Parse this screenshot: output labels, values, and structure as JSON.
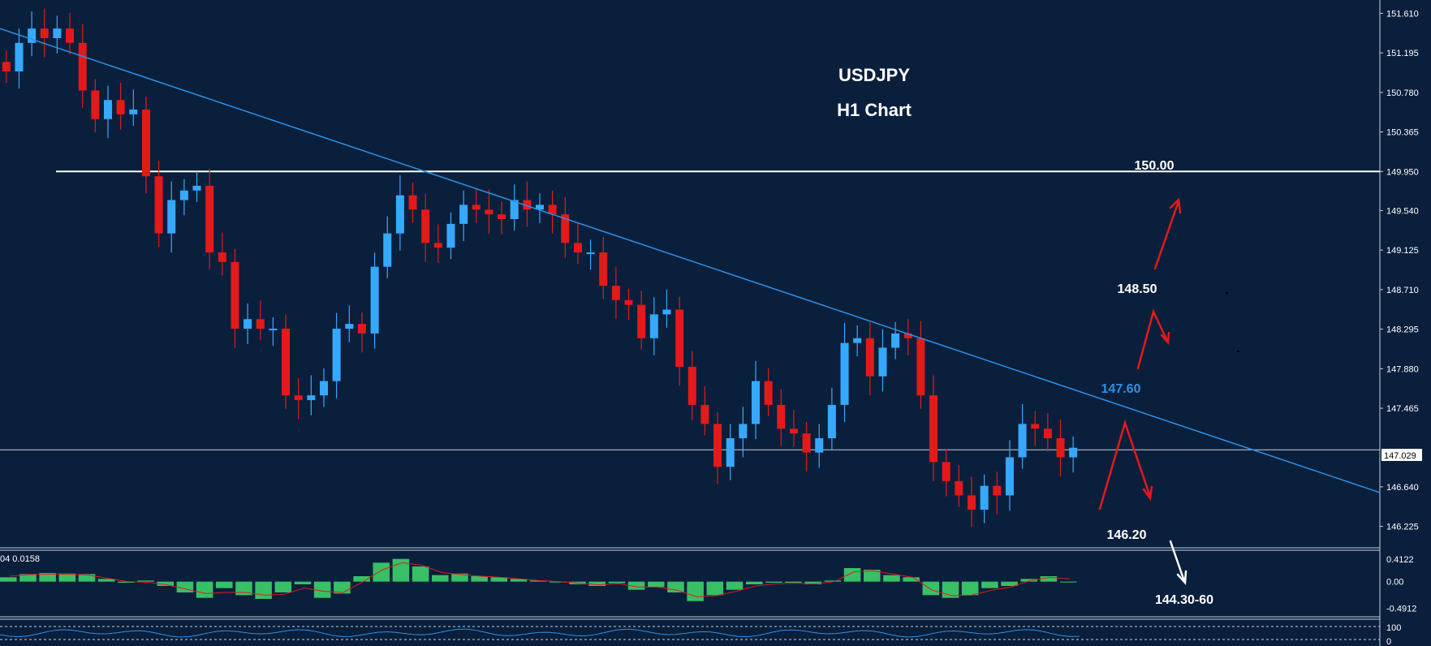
{
  "chart_data": {
    "type": "candlestick",
    "title": "USDJPY",
    "subtitle": "H1 Chart",
    "symbol": "USDJPY",
    "timeframe": "H1",
    "y_axis_ticks": [
      "151.610",
      "151.195",
      "150.780",
      "150.365",
      "149.950",
      "149.540",
      "149.125",
      "148.710",
      "148.295",
      "147.880",
      "147.465",
      "147.029",
      "146.640",
      "146.225"
    ],
    "current_price": "147.029",
    "ylim": [
      146.0,
      151.75
    ],
    "levels": [
      {
        "label": "150.00",
        "value": 149.95,
        "color": "#ffffff"
      },
      {
        "label": "147.029",
        "value": 147.029,
        "color": "#c8d0dc"
      }
    ],
    "trendline": {
      "start_price": 151.45,
      "end_price": 146.58,
      "color": "#2e8fe6"
    },
    "annotations": [
      {
        "text": "150.00",
        "color": "#ffffff"
      },
      {
        "text": "148.50",
        "color": "#ffffff"
      },
      {
        "text": "147.60",
        "color": "#2e8fe6"
      },
      {
        "text": "146.20",
        "color": "#ffffff"
      },
      {
        "text": "144.30-60",
        "color": "#ffffff"
      }
    ],
    "series_closes": [
      151.0,
      151.3,
      151.45,
      151.35,
      151.45,
      151.3,
      150.8,
      150.5,
      150.7,
      150.55,
      150.6,
      149.9,
      149.3,
      149.65,
      149.75,
      149.8,
      149.1,
      149.0,
      148.3,
      148.4,
      148.3,
      148.3,
      147.6,
      147.55,
      147.6,
      147.75,
      148.3,
      148.35,
      148.25,
      148.95,
      149.3,
      149.7,
      149.55,
      149.2,
      149.15,
      149.4,
      149.6,
      149.55,
      149.5,
      149.45,
      149.65,
      149.55,
      149.6,
      149.5,
      149.2,
      149.1,
      149.1,
      148.75,
      148.6,
      148.55,
      148.2,
      148.45,
      148.5,
      147.9,
      147.5,
      147.3,
      146.85,
      147.15,
      147.3,
      147.75,
      147.5,
      147.25,
      147.2,
      147.0,
      147.15,
      147.5,
      148.15,
      148.2,
      147.8,
      148.1,
      148.25,
      148.2,
      147.6,
      146.9,
      146.7,
      146.55,
      146.4,
      146.65,
      146.55,
      146.95,
      147.3,
      147.25,
      147.15,
      146.95,
      147.05
    ],
    "macd_panel": {
      "header": "04 0.0158",
      "ticks": [
        "0.4122",
        "0.00",
        "-0.4912"
      ],
      "ylim": [
        -0.62,
        0.55
      ],
      "histogram": [
        0.08,
        0.14,
        0.16,
        0.15,
        0.14,
        0.05,
        -0.02,
        0.02,
        -0.08,
        -0.2,
        -0.3,
        -0.12,
        -0.25,
        -0.32,
        -0.2,
        -0.05,
        -0.3,
        -0.22,
        0.1,
        0.35,
        0.42,
        0.28,
        0.12,
        0.15,
        0.1,
        0.08,
        0.05,
        0.02,
        0.0,
        -0.05,
        -0.08,
        -0.03,
        -0.15,
        -0.1,
        -0.2,
        -0.36,
        -0.25,
        -0.15,
        -0.05,
        -0.02,
        -0.02,
        -0.05,
        0.02,
        0.25,
        0.22,
        0.12,
        0.08,
        -0.25,
        -0.3,
        -0.25,
        -0.12,
        -0.08,
        0.05,
        0.1,
        0.0
      ],
      "signal": [
        0.1,
        0.13,
        0.14,
        0.14,
        0.12,
        0.06,
        0.0,
        -0.01,
        -0.06,
        -0.14,
        -0.22,
        -0.2,
        -0.2,
        -0.25,
        -0.23,
        -0.12,
        -0.18,
        -0.2,
        0.0,
        0.22,
        0.35,
        0.3,
        0.17,
        0.13,
        0.1,
        0.08,
        0.05,
        0.02,
        0.0,
        -0.03,
        -0.06,
        -0.04,
        -0.1,
        -0.1,
        -0.16,
        -0.28,
        -0.26,
        -0.18,
        -0.08,
        -0.04,
        -0.03,
        -0.04,
        0.0,
        0.18,
        0.2,
        0.14,
        0.08,
        -0.16,
        -0.26,
        -0.25,
        -0.16,
        -0.1,
        0.02,
        0.08,
        0.05
      ]
    },
    "rsi_panel": {
      "ticks": [
        "100",
        "0"
      ]
    },
    "colors": {
      "background": "#0a1f3c",
      "bull": "#36a9ff",
      "bear": "#e31a1a",
      "histogram": "#37c066",
      "signal": "#e31a1a"
    }
  }
}
